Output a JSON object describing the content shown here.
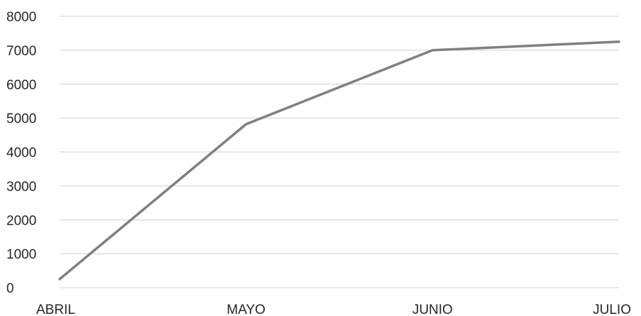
{
  "chart_data": {
    "type": "line",
    "title": "",
    "xlabel": "",
    "ylabel": "",
    "categories": [
      "ABRIL",
      "MAYO",
      "JUNIO",
      "JULIO"
    ],
    "series": [
      {
        "values": [
          250,
          4820,
          7000,
          7250
        ]
      }
    ],
    "ylim": [
      0,
      8000
    ],
    "y_ticks": [
      0,
      1000,
      2000,
      3000,
      4000,
      5000,
      6000,
      7000,
      8000
    ],
    "grid": true,
    "legend": "none",
    "line_color": "#808080",
    "grid_color": "#d9d9d9"
  }
}
